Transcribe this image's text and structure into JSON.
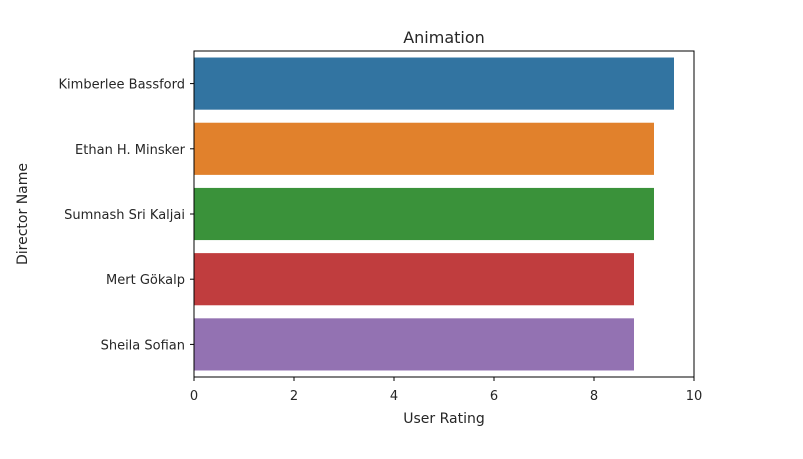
{
  "chart_data": {
    "type": "bar",
    "orientation": "horizontal",
    "title": "Animation",
    "xlabel": "User Rating",
    "ylabel": "Director Name",
    "categories": [
      "Kimberlee Bassford",
      "Ethan H. Minsker",
      "Sumnash Sri Kaljai",
      "Mert Gökalp",
      "Sheila Sofian"
    ],
    "values": [
      9.6,
      9.2,
      9.2,
      8.8,
      8.8
    ],
    "colors": [
      "#3274a1",
      "#e1812c",
      "#3a923a",
      "#c03d3e",
      "#9372b2"
    ],
    "xlim": [
      0,
      10
    ],
    "xticks": [
      "0",
      "2",
      "4",
      "6",
      "8",
      "10"
    ],
    "grid": false,
    "legend": "none"
  }
}
